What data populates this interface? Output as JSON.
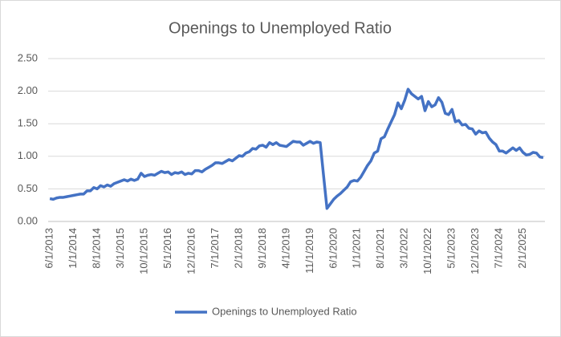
{
  "chart_data": {
    "type": "line",
    "title": "Openings to Unemployed Ratio",
    "categories": [
      "6/1/2013",
      null,
      null,
      null,
      null,
      null,
      null,
      "1/1/2014",
      null,
      null,
      null,
      null,
      null,
      null,
      "8/1/2014",
      null,
      null,
      null,
      null,
      null,
      null,
      "3/1/2015",
      null,
      null,
      null,
      null,
      null,
      null,
      "10/1/2015",
      null,
      null,
      null,
      null,
      null,
      null,
      "5/1/2016",
      null,
      null,
      null,
      null,
      null,
      null,
      "12/1/2016",
      null,
      null,
      null,
      null,
      null,
      null,
      "7/1/2017",
      null,
      null,
      null,
      null,
      null,
      null,
      "2/1/2018",
      null,
      null,
      null,
      null,
      null,
      null,
      "9/1/2018",
      null,
      null,
      null,
      null,
      null,
      null,
      "4/1/2019",
      null,
      null,
      null,
      null,
      null,
      null,
      "11/1/2019",
      null,
      null,
      null,
      null,
      null,
      null,
      "6/1/2020",
      null,
      null,
      null,
      null,
      null,
      null,
      "1/1/2021",
      null,
      null,
      null,
      null,
      null,
      null,
      "8/1/2021",
      null,
      null,
      null,
      null,
      null,
      null,
      "3/1/2022",
      null,
      null,
      null,
      null,
      null,
      null,
      "10/1/2022",
      null,
      null,
      null,
      null,
      null,
      null,
      "5/1/2023",
      null,
      null,
      null,
      null,
      null,
      null,
      "12/1/2023",
      null,
      null,
      null,
      null,
      null,
      null,
      "7/1/2024",
      null,
      null,
      null,
      null,
      null,
      null,
      "2/1/2025",
      null,
      null,
      null,
      null,
      null,
      null
    ],
    "series": [
      {
        "name": "Openings to Unemployed Ratio",
        "color": "#4472c4",
        "values": [
          0.35,
          0.34,
          0.36,
          0.37,
          0.37,
          0.38,
          0.39,
          0.4,
          0.41,
          0.42,
          0.42,
          0.47,
          0.47,
          0.52,
          0.5,
          0.55,
          0.53,
          0.56,
          0.54,
          0.58,
          0.6,
          0.62,
          0.64,
          0.62,
          0.65,
          0.63,
          0.65,
          0.74,
          0.69,
          0.71,
          0.72,
          0.71,
          0.74,
          0.77,
          0.75,
          0.76,
          0.72,
          0.75,
          0.74,
          0.76,
          0.72,
          0.74,
          0.73,
          0.78,
          0.78,
          0.76,
          0.8,
          0.83,
          0.86,
          0.9,
          0.9,
          0.89,
          0.92,
          0.95,
          0.93,
          0.97,
          1.01,
          1.0,
          1.05,
          1.07,
          1.12,
          1.11,
          1.16,
          1.17,
          1.14,
          1.21,
          1.18,
          1.21,
          1.17,
          1.16,
          1.15,
          1.19,
          1.23,
          1.22,
          1.22,
          1.17,
          1.2,
          1.23,
          1.2,
          1.22,
          1.21,
          0.7,
          0.2,
          0.27,
          0.34,
          0.39,
          0.43,
          0.48,
          0.53,
          0.61,
          0.63,
          0.62,
          0.68,
          0.77,
          0.86,
          0.93,
          1.05,
          1.08,
          1.27,
          1.3,
          1.42,
          1.53,
          1.64,
          1.82,
          1.73,
          1.86,
          2.03,
          1.96,
          1.92,
          1.88,
          1.92,
          1.7,
          1.84,
          1.76,
          1.79,
          1.9,
          1.83,
          1.66,
          1.64,
          1.72,
          1.53,
          1.55,
          1.48,
          1.49,
          1.43,
          1.42,
          1.34,
          1.39,
          1.36,
          1.37,
          1.28,
          1.22,
          1.18,
          1.08,
          1.08,
          1.05,
          1.09,
          1.13,
          1.09,
          1.13,
          1.06,
          1.02,
          1.03,
          1.06,
          1.05,
          0.99,
          0.98
        ]
      }
    ],
    "ylim": [
      0,
      2.5
    ],
    "yticks": [
      {
        "value": 0,
        "label": "0.00"
      },
      {
        "value": 0.5,
        "label": "0.50"
      },
      {
        "value": 1,
        "label": "1.00"
      },
      {
        "value": 1.5,
        "label": "1.50"
      },
      {
        "value": 2,
        "label": "2.00"
      },
      {
        "value": 2.5,
        "label": "2.50"
      }
    ],
    "grid": true,
    "legend": "bottom"
  }
}
